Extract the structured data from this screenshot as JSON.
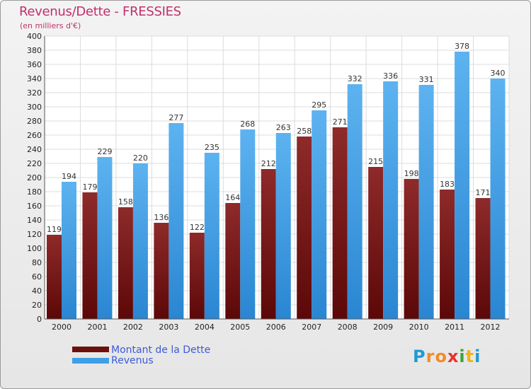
{
  "title": "Revenus/Dette - FRESSIES",
  "subtitle": "(en milliers d'€)",
  "logo": {
    "text": "Proxiti",
    "letters": [
      "P",
      "r",
      "o",
      "x",
      "i",
      "t",
      "i"
    ],
    "colors": [
      "#1f9bd6",
      "#f28c28",
      "#f28c28",
      "#e8322b",
      "#3aa53a",
      "#f2b31a",
      "#1f9bd6"
    ]
  },
  "colors": {
    "dette": "#7a1414",
    "dette_light": "#9a3434",
    "revenus": "#3f9fe6",
    "revenus_light": "#60b6f0",
    "title": "#c0306a",
    "legend_text": "#3b5bd6"
  },
  "chart_data": {
    "type": "bar",
    "title": "Revenus/Dette - FRESSIES",
    "subtitle": "(en milliers d'€)",
    "categories": [
      "2000",
      "2001",
      "2002",
      "2003",
      "2004",
      "2005",
      "2006",
      "2007",
      "2008",
      "2009",
      "2010",
      "2011",
      "2012"
    ],
    "series": [
      {
        "name": "Montant de la Dette",
        "values": [
          119,
          179,
          158,
          136,
          122,
          164,
          212,
          258,
          271,
          215,
          198,
          183,
          171
        ]
      },
      {
        "name": "Revenus",
        "values": [
          194,
          229,
          220,
          277,
          235,
          268,
          263,
          295,
          332,
          336,
          331,
          378,
          340
        ]
      }
    ],
    "ylim": [
      0,
      400
    ],
    "yticks": [
      0,
      20,
      40,
      60,
      80,
      100,
      120,
      140,
      160,
      180,
      200,
      220,
      240,
      260,
      280,
      300,
      320,
      340,
      360,
      380,
      400
    ],
    "grid": true,
    "legend_position": "bottom-left"
  }
}
